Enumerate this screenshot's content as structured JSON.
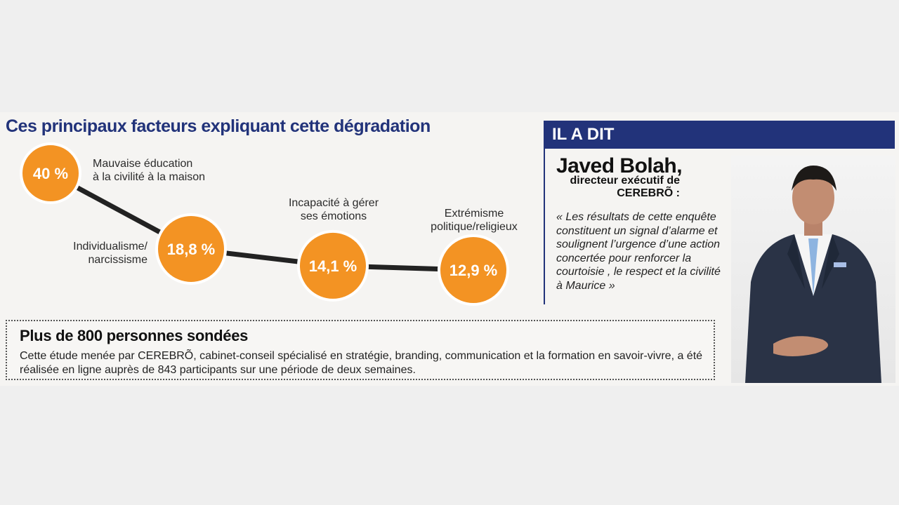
{
  "chart_title": "Ces principaux facteurs expliquant cette dégradation",
  "chart_data": {
    "type": "line",
    "title": "Ces principaux facteurs expliquant cette dégradation",
    "categories": [
      "Mauvaise éducation à la civilité à la maison",
      "Individualisme/ narcissisme",
      "Incapacité à gérer ses émotions",
      "Extrémisme politique/religieux"
    ],
    "values": [
      40,
      18.8,
      14.1,
      12.9
    ],
    "value_labels": [
      "40 %",
      "18,8 %",
      "14,1 %",
      "12,9 %"
    ],
    "category_lines": [
      [
        "Mauvaise éducation",
        "à la civilité à la maison"
      ],
      [
        "Individualisme/",
        "narcissisme"
      ],
      [
        "Incapacité à gérer",
        "ses émotions"
      ],
      [
        "Extrémisme",
        "politique/religieux"
      ]
    ],
    "colors": {
      "bubble": "#f39323",
      "line": "#222222",
      "bubble_border": "#ffffff"
    }
  },
  "survey": {
    "heading": "Plus de 800 personnes sondées",
    "text": "Cette étude menée par CEREBRÕ, cabinet-conseil spécialisé en stratégie, branding, communication et la formation en savoir-vivre, a été réalisée en ligne auprès de 843 participants sur une période de deux semaines."
  },
  "quote": {
    "header": "IL A DIT",
    "name": "Javed Bolah,",
    "role": "directeur exécutif de CEREBRÕ :",
    "text": "« Les résultats de cette enquête constituent un signal d’alarme et soulignent l’urgence d’une action concertée pour renforcer la courtoisie , le respect et la civilité à Maurice »"
  },
  "colors": {
    "accent": "#22337a",
    "bubble": "#f39323"
  },
  "icons": {
    "photo": "portrait-photo"
  }
}
